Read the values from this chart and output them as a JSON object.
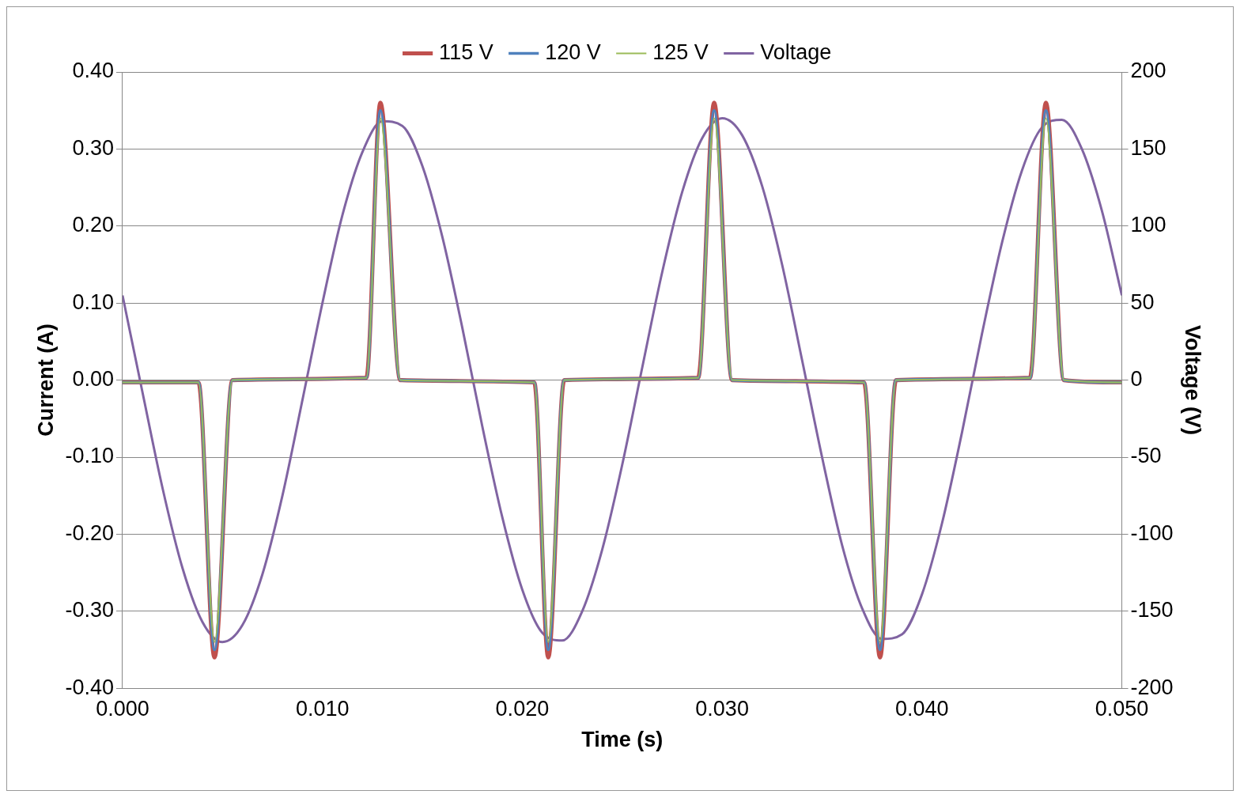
{
  "chart_data": {
    "type": "line",
    "xlabel": "Time (s)",
    "ylabel": "Current (A)",
    "y2label": "Voltage (V)",
    "xlim": [
      0,
      0.05
    ],
    "xticks": [
      {
        "value": 0,
        "label": "0.000"
      },
      {
        "value": 0.01,
        "label": "0.010"
      },
      {
        "value": 0.02,
        "label": "0.020"
      },
      {
        "value": 0.03,
        "label": "0.030"
      },
      {
        "value": 0.04,
        "label": "0.040"
      },
      {
        "value": 0.05,
        "label": "0.050"
      }
    ],
    "ylim": [
      -0.4,
      0.4
    ],
    "yticks": [
      {
        "value": -0.4,
        "label": "-0.40"
      },
      {
        "value": -0.3,
        "label": "-0.30"
      },
      {
        "value": -0.2,
        "label": "-0.20"
      },
      {
        "value": -0.1,
        "label": "-0.10"
      },
      {
        "value": 0,
        "label": "0.00"
      },
      {
        "value": 0.1,
        "label": "0.10"
      },
      {
        "value": 0.2,
        "label": "0.20"
      },
      {
        "value": 0.3,
        "label": "0.30"
      },
      {
        "value": 0.4,
        "label": "0.40"
      }
    ],
    "y2lim": [
      -200,
      200
    ],
    "y2ticks": [
      -200,
      -150,
      -100,
      -50,
      0,
      50,
      100,
      150,
      200
    ],
    "grid": "y",
    "legend": "top",
    "marker": "none",
    "line_style": "solid",
    "series": [
      {
        "name": "115 V",
        "color": "#c0504d",
        "x": [
          0,
          0.0038,
          0.0046,
          0.0055,
          0.0122,
          0.0129,
          0.0139,
          0.0206,
          0.0213,
          0.0221,
          0.0288,
          0.0296,
          0.0305,
          0.0371,
          0.0379,
          0.0387,
          0.0454,
          0.0462,
          0.0471,
          0.05
        ],
        "values": [
          -0.003,
          -0.003,
          -0.36,
          0,
          0.003,
          0.36,
          0,
          -0.003,
          -0.36,
          0,
          0.003,
          0.36,
          0,
          -0.003,
          -0.36,
          0,
          0.003,
          0.36,
          0,
          -0.003
        ]
      },
      {
        "name": "120 V",
        "color": "#4f81bd",
        "x": [
          0,
          0.0038,
          0.0046,
          0.0055,
          0.0122,
          0.0129,
          0.0139,
          0.0206,
          0.0213,
          0.0221,
          0.0288,
          0.0296,
          0.0305,
          0.0371,
          0.0379,
          0.0387,
          0.0454,
          0.0462,
          0.0471,
          0.05
        ],
        "values": [
          -0.003,
          -0.003,
          -0.35,
          0,
          0.003,
          0.35,
          0,
          -0.003,
          -0.35,
          0,
          0.003,
          0.35,
          0,
          -0.003,
          -0.35,
          0,
          0.003,
          0.35,
          0,
          -0.003
        ]
      },
      {
        "name": "125 V",
        "color": "#9bbb59",
        "x": [
          0,
          0.0038,
          0.0046,
          0.0055,
          0.0122,
          0.0129,
          0.0139,
          0.0206,
          0.0213,
          0.0221,
          0.0288,
          0.0296,
          0.0305,
          0.0371,
          0.0379,
          0.0387,
          0.0454,
          0.0462,
          0.0471,
          0.05
        ],
        "values": [
          -0.003,
          -0.003,
          -0.34,
          0,
          0.003,
          0.34,
          0,
          -0.003,
          -0.34,
          0,
          0.003,
          0.34,
          0,
          -0.003,
          -0.34,
          0,
          0.003,
          0.34,
          0,
          -0.003
        ]
      },
      {
        "name": "Voltage",
        "color": "#8064a2",
        "axis": "y2",
        "x": [
          0,
          0.001,
          0.002,
          0.003,
          0.004,
          0.005,
          0.006,
          0.007,
          0.008,
          0.009,
          0.01,
          0.011,
          0.012,
          0.013,
          0.014,
          0.015,
          0.016,
          0.017,
          0.018,
          0.019,
          0.02,
          0.021,
          0.022,
          0.023,
          0.024,
          0.025,
          0.026,
          0.027,
          0.028,
          0.029,
          0.03,
          0.031,
          0.032,
          0.033,
          0.034,
          0.035,
          0.036,
          0.037,
          0.038,
          0.039,
          0.04,
          0.041,
          0.042,
          0.043,
          0.044,
          0.045,
          0.046,
          0.047,
          0.048,
          0.049,
          0.05
        ],
        "values": [
          55,
          -8,
          -70,
          -122,
          -157,
          -170,
          -159,
          -126,
          -75,
          -13,
          50,
          107,
          148,
          168,
          165,
          139,
          93,
          34,
          -30,
          -89,
          -136,
          -164,
          -169,
          -150,
          -110,
          -55,
          8,
          70,
          122,
          157,
          170,
          159,
          126,
          75,
          13,
          -50,
          -107,
          -148,
          -168,
          -165,
          -139,
          -93,
          -34,
          30,
          89,
          136,
          164,
          169,
          150,
          110,
          55
        ]
      }
    ]
  }
}
